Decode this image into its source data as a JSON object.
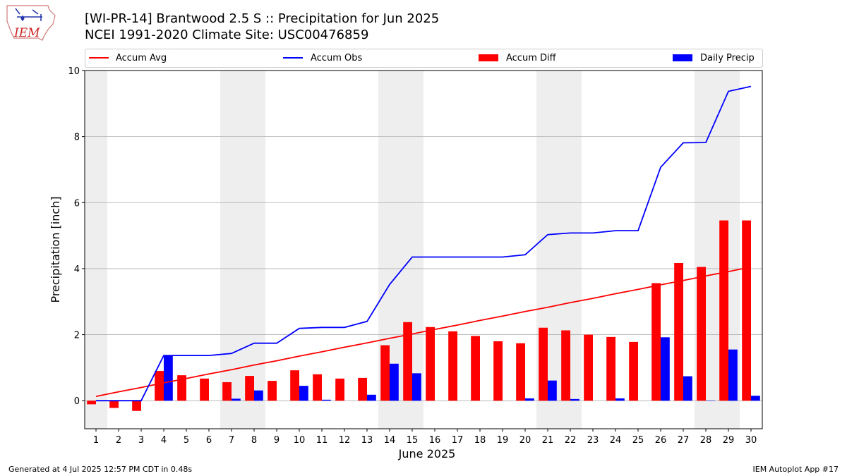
{
  "header": {
    "title": "[WI-PR-14] Brantwood 2.5 S :: Precipitation for Jun 2025",
    "subtitle": "NCEI 1991-2020 Climate Site: USC00476859"
  },
  "logo": {
    "text": "IEM"
  },
  "footer": {
    "generated": "Generated at 4 Jul 2025 12:57 PM CDT in 0.48s",
    "app": "IEM Autoplot App #17"
  },
  "colors": {
    "avg": "#ff0000",
    "obs": "#0000ff",
    "diff": "#ff0000",
    "daily": "#0000ff",
    "weekend": "#eeeeee",
    "grid": "#b0b0b0"
  },
  "chart_data": {
    "type": "bar",
    "xlabel": "June 2025",
    "ylabel": "Precipitation [inch]",
    "ylim": [
      -0.85,
      10
    ],
    "yticks": [
      0,
      2,
      4,
      6,
      8,
      10
    ],
    "grid": "horizontal",
    "legend": "top",
    "categories": [
      "1",
      "2",
      "3",
      "4",
      "5",
      "6",
      "7",
      "8",
      "9",
      "10",
      "11",
      "12",
      "13",
      "14",
      "15",
      "16",
      "17",
      "18",
      "19",
      "20",
      "21",
      "22",
      "23",
      "24",
      "25",
      "26",
      "27",
      "28",
      "29",
      "30"
    ],
    "weekend_days": [
      1,
      7,
      8,
      14,
      15,
      21,
      22,
      28,
      29
    ],
    "series": [
      {
        "name": "Accum Avg",
        "kind": "line",
        "values": [
          0.13,
          0.27,
          0.4,
          0.54,
          0.67,
          0.81,
          0.94,
          1.08,
          1.21,
          1.35,
          1.48,
          1.62,
          1.75,
          1.89,
          2.02,
          2.16,
          2.29,
          2.43,
          2.56,
          2.7,
          2.83,
          2.97,
          3.1,
          3.24,
          3.37,
          3.51,
          3.64,
          3.78,
          3.91,
          4.05
        ]
      },
      {
        "name": "Accum Obs",
        "kind": "line",
        "values": [
          0.0,
          0.0,
          0.0,
          1.37,
          1.37,
          1.37,
          1.43,
          1.74,
          1.74,
          2.19,
          2.22,
          2.22,
          2.4,
          3.52,
          4.35,
          4.35,
          4.35,
          4.35,
          4.35,
          4.42,
          5.03,
          5.08,
          5.08,
          5.15,
          5.15,
          7.07,
          7.81,
          7.82,
          9.37,
          9.52
        ]
      },
      {
        "name": "Accum Diff",
        "kind": "bar",
        "values": [
          -0.11,
          -0.22,
          -0.31,
          0.9,
          0.77,
          0.67,
          0.56,
          0.75,
          0.6,
          0.92,
          0.8,
          0.67,
          0.69,
          1.68,
          2.38,
          2.23,
          2.1,
          1.96,
          1.8,
          1.74,
          2.21,
          2.13,
          2.0,
          1.93,
          1.78,
          3.56,
          4.17,
          4.05,
          5.46,
          5.46
        ]
      },
      {
        "name": "Daily Precip",
        "kind": "bar",
        "values": [
          0,
          0,
          0,
          1.37,
          0,
          0,
          0.06,
          0.31,
          0,
          0.45,
          0.03,
          0,
          0.18,
          1.12,
          0.83,
          0,
          0,
          0,
          0,
          0.07,
          0.61,
          0.05,
          0,
          0.07,
          0,
          1.92,
          0.74,
          0.01,
          1.55,
          0.15
        ]
      }
    ]
  }
}
